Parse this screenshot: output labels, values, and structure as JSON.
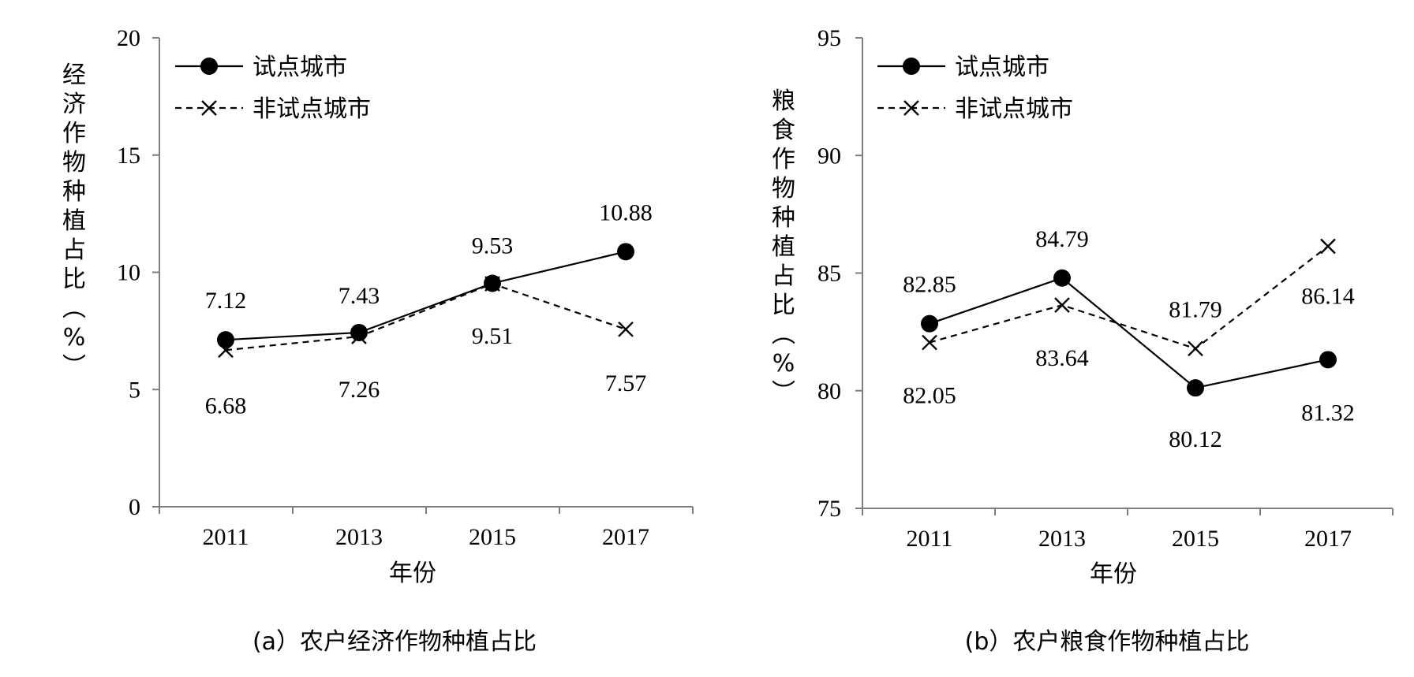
{
  "chart_data": [
    {
      "type": "line",
      "title": "(a）农户经济作物种植占比",
      "xlabel": "年份",
      "ylabel": "经济作物种植占比（%）",
      "categories": [
        "2011",
        "2013",
        "2015",
        "2017"
      ],
      "ylim": [
        0,
        20
      ],
      "yticks": [
        0,
        5,
        10,
        15,
        20
      ],
      "series": [
        {
          "name": "试点城市",
          "values": [
            7.12,
            7.43,
            9.53,
            10.88
          ],
          "labels": [
            "7.12",
            "7.43",
            "9.53",
            "10.88"
          ],
          "style": "solid",
          "marker": "circle"
        },
        {
          "name": "非试点城市",
          "values": [
            6.68,
            7.26,
            9.51,
            7.57
          ],
          "labels": [
            "6.68",
            "7.26",
            "9.51",
            "7.57"
          ],
          "style": "dashed",
          "marker": "x"
        }
      ],
      "legend": "top-left",
      "grid": false
    },
    {
      "type": "line",
      "title": "(b）农户粮食作物种植占比",
      "xlabel": "年份",
      "ylabel": "粮食作物种植占比（%）",
      "categories": [
        "2011",
        "2013",
        "2015",
        "2017"
      ],
      "ylim": [
        75,
        95
      ],
      "yticks": [
        75,
        80,
        85,
        90,
        95
      ],
      "series": [
        {
          "name": "试点城市",
          "values": [
            82.85,
            84.79,
            80.12,
            81.32
          ],
          "labels": [
            "82.85",
            "84.79",
            "80.12",
            "81.32"
          ],
          "style": "solid",
          "marker": "circle"
        },
        {
          "name": "非试点城市",
          "values": [
            82.05,
            83.64,
            81.79,
            86.14
          ],
          "labels": [
            "82.05",
            "83.64",
            "81.79",
            "86.14"
          ],
          "style": "dashed",
          "marker": "x"
        }
      ],
      "legend": "top-left",
      "grid": false
    }
  ]
}
